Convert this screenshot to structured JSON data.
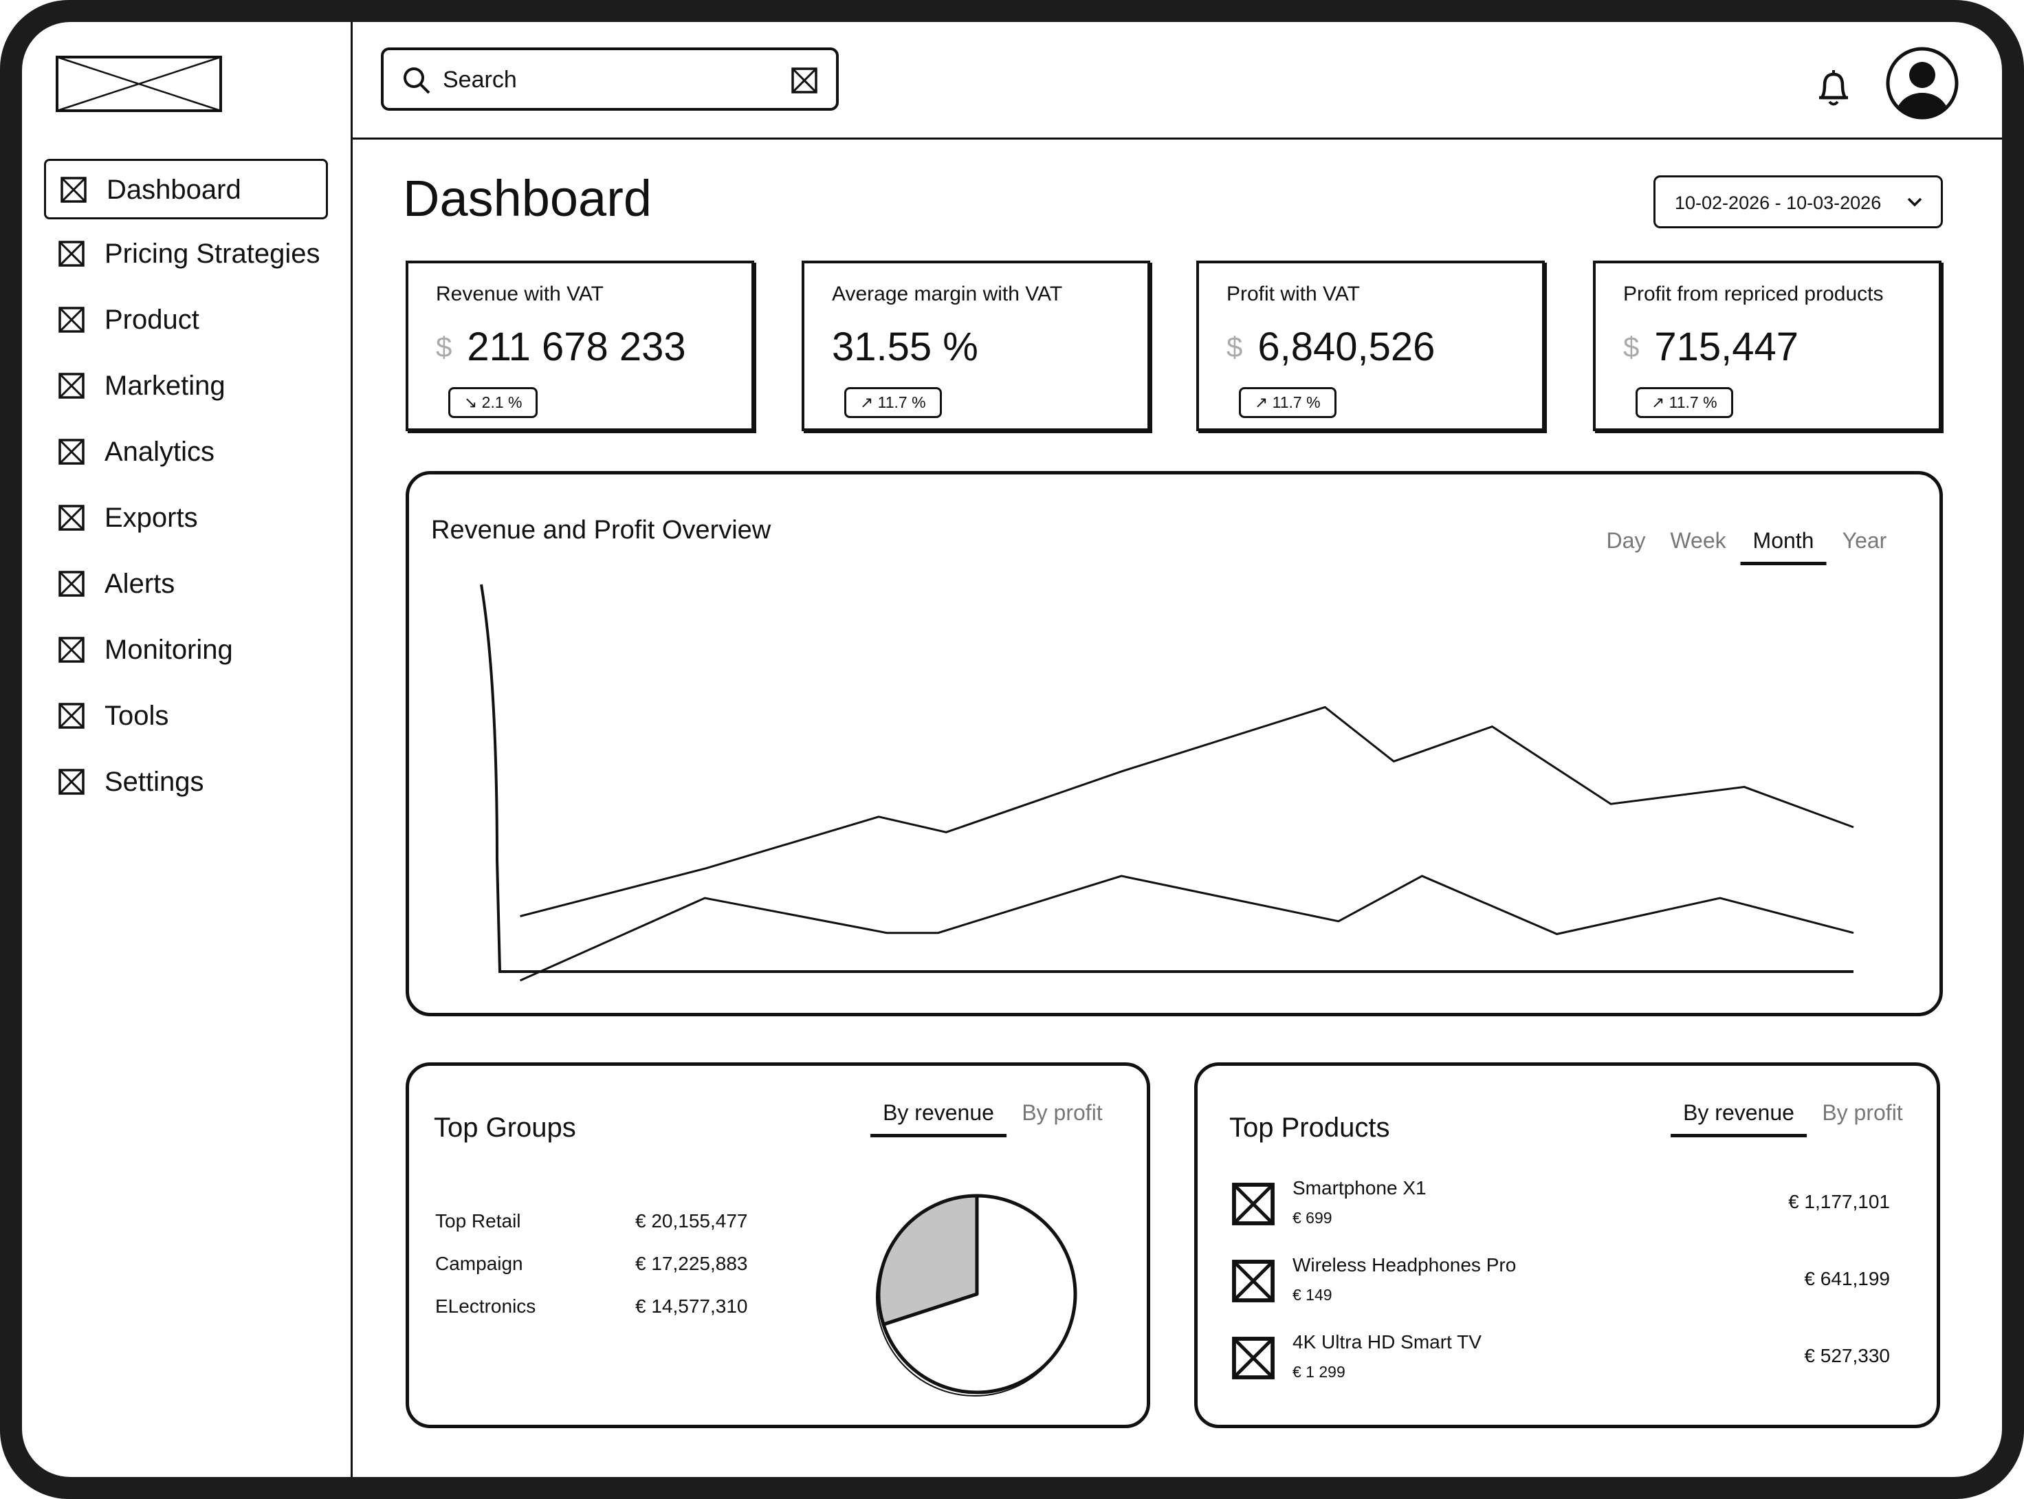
{
  "search": {
    "placeholder": "Search"
  },
  "nav": {
    "items": [
      {
        "label": "Dashboard",
        "active": true
      },
      {
        "label": "Pricing Strategies"
      },
      {
        "label": "Product"
      },
      {
        "label": "Marketing"
      },
      {
        "label": "Analytics"
      },
      {
        "label": "Exports"
      },
      {
        "label": "Alerts"
      },
      {
        "label": "Monitoring"
      },
      {
        "label": "Tools"
      },
      {
        "label": "Settings"
      }
    ]
  },
  "header": {
    "title": "Dashboard",
    "date_range": "10-02-2026 - 10-03-2026"
  },
  "kpis": [
    {
      "label": "Revenue with VAT",
      "currency": "$",
      "value": "211 678 233",
      "change": "↘ 2.1 %"
    },
    {
      "label": "Average margin with VAT",
      "value": "31.55 %",
      "change": "↗ 11.7 %"
    },
    {
      "label": "Profit with VAT",
      "currency": "$",
      "value": "6,840,526",
      "change": "↗ 11.7 %"
    },
    {
      "label": "Profit from repriced products",
      "currency": "$",
      "value": "715,447",
      "change": "↗ 11.7 %"
    }
  ],
  "overview": {
    "title": "Revenue and Profit Overview",
    "tabs": [
      {
        "label": "Day"
      },
      {
        "label": "Week"
      },
      {
        "label": "Month",
        "active": true
      },
      {
        "label": "Year"
      }
    ],
    "chart": {
      "type": "line",
      "xlim": [
        0,
        100
      ],
      "ylim": [
        0,
        100
      ],
      "series": [
        {
          "color": "#111111",
          "x": [
            1.1,
            14.9,
            27.7,
            32.7,
            45.7,
            60.8,
            65.9,
            73.2,
            82.0,
            91.9,
            100
          ],
          "values": [
            14.3,
            26.7,
            40,
            36,
            51.7,
            68.3,
            54.3,
            63.3,
            43.3,
            47.7,
            37.3
          ]
        },
        {
          "color": "#111111",
          "x": [
            1.1,
            14.8,
            28.3,
            32.1,
            45.7,
            61.8,
            68.0,
            78.0,
            90.1,
            100
          ],
          "values": [
            -2.3,
            19,
            10,
            10,
            24.7,
            13,
            24.7,
            9.7,
            19,
            10
          ]
        }
      ]
    }
  },
  "top_groups": {
    "title": "Top Groups",
    "tabs": [
      {
        "label": "By revenue",
        "active": true
      },
      {
        "label": "By profit"
      }
    ],
    "rows": [
      {
        "name": "Top Retail",
        "value": "€ 20,155,477"
      },
      {
        "name": "Campaign",
        "value": "€ 17,225,883"
      },
      {
        "name": "ELectronics",
        "value": "€ 14,577,310"
      }
    ],
    "pie": {
      "type": "pie",
      "values": [
        30,
        70
      ],
      "colors": [
        "#c4c4c4",
        "#ffffff"
      ]
    }
  },
  "top_products": {
    "title": "Top Products",
    "tabs": [
      {
        "label": "By revenue",
        "active": true
      },
      {
        "label": "By profit"
      }
    ],
    "items": [
      {
        "name": "Smartphone X1",
        "price": "€ 699",
        "revenue": "€ 1,177,101"
      },
      {
        "name": "Wireless Headphones Pro",
        "price": "€ 149",
        "revenue": "€ 641,199"
      },
      {
        "name": "4K Ultra HD Smart TV",
        "price": "€ 1 299",
        "revenue": "€ 527,330"
      }
    ]
  }
}
